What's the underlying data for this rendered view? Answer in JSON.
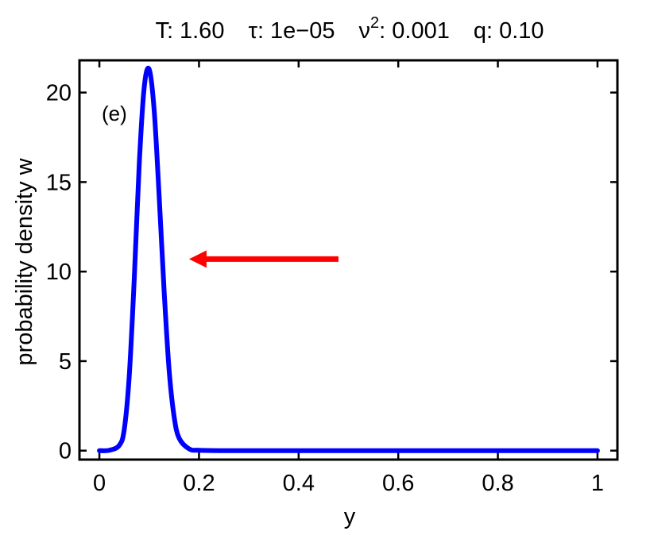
{
  "chart_data": {
    "type": "line",
    "title": {
      "T_label": "T:",
      "T_value": "1.60",
      "tau_label": "τ:",
      "tau_value": "1e−05",
      "nu_label": "ν",
      "nu_exp": "2",
      "nu_value": ": 0.001",
      "q_label": "q:",
      "q_value": "0.10"
    },
    "panel_label": "(e)",
    "xlabel": "y",
    "ylabel": "probability density w",
    "xlim": [
      -0.04,
      1.04
    ],
    "ylim": [
      -0.5,
      21.8
    ],
    "xticks": [
      0,
      0.2,
      0.4,
      0.6,
      0.8,
      1
    ],
    "xtick_labels": [
      "0",
      "0.2",
      "0.4",
      "0.6",
      "0.8",
      "1"
    ],
    "yticks": [
      0,
      5,
      10,
      15,
      20
    ],
    "ytick_labels": [
      "0",
      "5",
      "10",
      "15",
      "20"
    ],
    "grid": false,
    "series": [
      {
        "color": "#0000ff",
        "x": [
          0,
          0.02,
          0.04,
          0.05,
          0.06,
          0.07,
          0.08,
          0.09,
          0.1,
          0.11,
          0.12,
          0.13,
          0.14,
          0.15,
          0.16,
          0.18,
          0.2,
          0.25,
          0.3,
          0.4,
          0.5,
          0.6,
          0.7,
          0.8,
          0.9,
          1
        ],
        "y": [
          0,
          0.02,
          0.3,
          1.2,
          4.2,
          9.6,
          16.0,
          20.3,
          21.3,
          19.0,
          14.2,
          8.9,
          4.5,
          1.9,
          0.7,
          0.1,
          0.02,
          0,
          0,
          0,
          0,
          0,
          0,
          0,
          0,
          0
        ]
      }
    ],
    "annotations": [
      {
        "type": "arrow",
        "color": "#ff0000",
        "x_start": 0.48,
        "x_end": 0.18,
        "y": 10.7
      }
    ]
  }
}
